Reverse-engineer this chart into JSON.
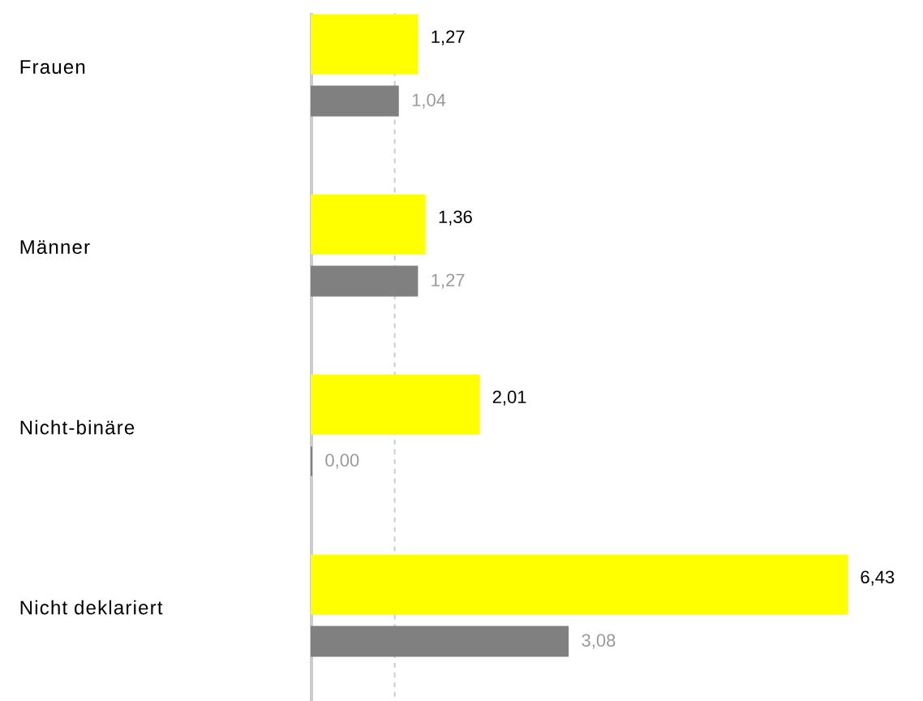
{
  "chart_data": {
    "type": "bar",
    "orientation": "horizontal",
    "categories": [
      "Frauen",
      "Männer",
      "Nicht-binäre",
      "Nicht deklariert"
    ],
    "series": [
      {
        "color": "#ffff00",
        "values": [
          1.27,
          1.36,
          2.01,
          6.43
        ],
        "value_labels": [
          "1,27",
          "1,36",
          "2,01",
          "6,43"
        ]
      },
      {
        "color": "#808080",
        "values": [
          1.04,
          1.27,
          0.0,
          3.08
        ],
        "value_labels": [
          "1,04",
          "1,27",
          "0,00",
          "3,08"
        ]
      }
    ],
    "ref_lines": [
      {
        "axis": "x",
        "value": 1,
        "line_style": "dashed",
        "color": "#cccccc"
      }
    ],
    "legend": false
  }
}
